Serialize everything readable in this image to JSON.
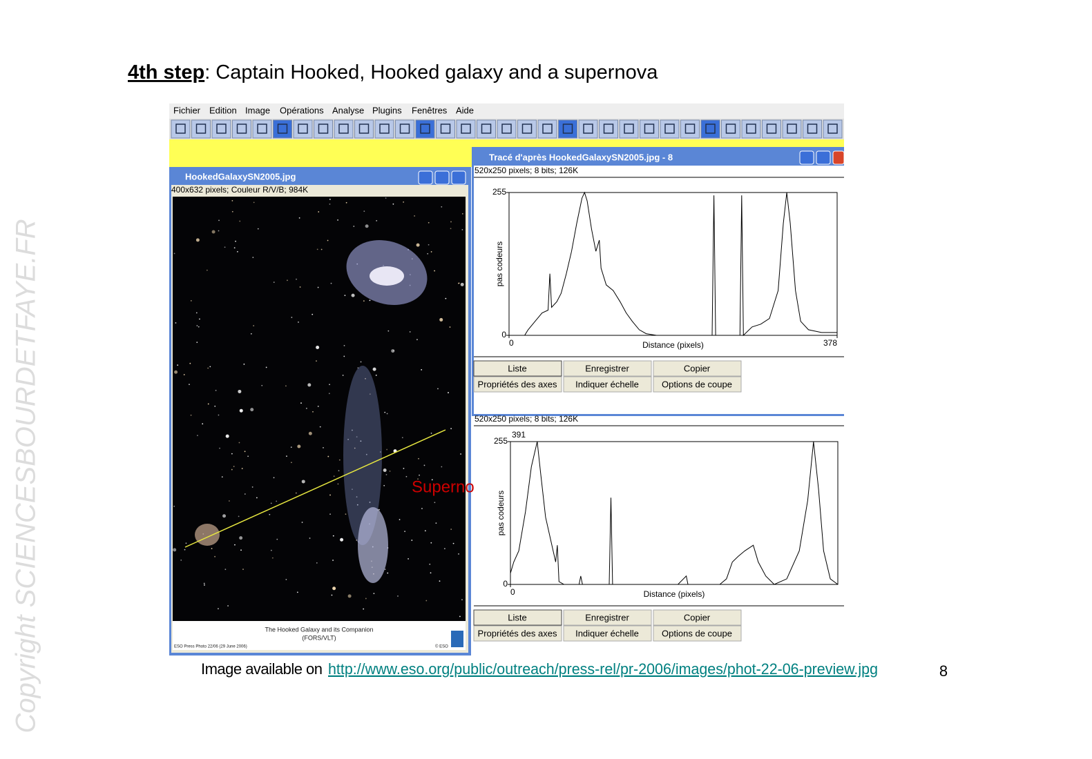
{
  "slide": {
    "title_bold": "4th step",
    "title_rest": ": Captain Hooked, Hooked galaxy and a supernova",
    "footer_text": "Image available on",
    "footer_link": "http://www.eso.org/public/outreach/press-rel/pr-2006/images/phot-22-06-preview.jpg",
    "page_number": "8",
    "copyright": "Copyright SCIENCESBOURDETFAYE.FR"
  },
  "menu": [
    "Fichier",
    "Edition",
    "Image",
    "Opérations",
    "Analyse",
    "Plugins",
    "Fenêtres",
    "Aide"
  ],
  "image_window": {
    "title": "HookedGalaxySN2005.jpg",
    "info": "400x632 pixels; Couleur R/V/B; 984K",
    "caption": "The Hooked Galaxy and its Companion",
    "caption2": "(FORS/VLT)",
    "credit": "ESO Press Photo 22/06 (29 June 2006)",
    "credit_right": "© ESO",
    "annotation": "Supernova"
  },
  "plot_windows": [
    {
      "title": "Tracé d'après HookedGalaxySN2005.jpg - 8",
      "info": "520x250 pixels; 8 bits; 126K",
      "buttons": [
        "Liste",
        "Enregistrer",
        "Copier",
        "Propriétés des axes",
        "Indiquer échelle",
        "Options de coupe"
      ],
      "chart_data": {
        "type": "line",
        "xlabel": "Distance (pixels)",
        "ylabel": "pas codeurs",
        "xlim": [
          0,
          378
        ],
        "ylim": [
          0,
          255
        ],
        "xticks": [
          0,
          378
        ],
        "yticks": [
          0,
          255
        ],
        "color": "#000000",
        "x": [
          0,
          18,
          22,
          30,
          38,
          45,
          47,
          49,
          55,
          60,
          66,
          72,
          78,
          84,
          87,
          90,
          95,
          100,
          104,
          106,
          112,
          120,
          128,
          135,
          142,
          150,
          158,
          170,
          200,
          234,
          236,
          238,
          266,
          268,
          270,
          280,
          290,
          300,
          310,
          316,
          320,
          324,
          330,
          336,
          345,
          360,
          378
        ],
        "values": [
          0,
          0,
          10,
          25,
          40,
          45,
          110,
          50,
          60,
          75,
          110,
          150,
          200,
          245,
          255,
          240,
          190,
          150,
          170,
          120,
          90,
          80,
          60,
          40,
          25,
          10,
          3,
          0,
          0,
          0,
          250,
          0,
          0,
          250,
          0,
          15,
          20,
          30,
          80,
          200,
          255,
          200,
          80,
          25,
          10,
          5,
          5
        ]
      }
    },
    {
      "info": "520x250 pixels; 8 bits; 126K",
      "buttons": [
        "Liste",
        "Enregistrer",
        "Copier",
        "Propriétés des axes",
        "Indiquer échelle",
        "Options de coupe"
      ],
      "chart_data": {
        "type": "line",
        "xlabel": "Distance (pixels)",
        "ylabel": "pas codeurs",
        "annotation": "391",
        "xlim": [
          0,
          391
        ],
        "ylim": [
          0,
          255
        ],
        "xticks": [
          0
        ],
        "yticks": [
          0,
          255
        ],
        "color": "#000000",
        "x": [
          0,
          4,
          10,
          18,
          25,
          32,
          36,
          42,
          48,
          54,
          56,
          58,
          64,
          82,
          84,
          86,
          118,
          120,
          122,
          200,
          210,
          212,
          250,
          258,
          265,
          272,
          280,
          290,
          296,
          305,
          315,
          330,
          345,
          355,
          362,
          368,
          374,
          382,
          391
        ],
        "values": [
          20,
          40,
          60,
          130,
          210,
          255,
          200,
          120,
          80,
          40,
          70,
          5,
          0,
          0,
          15,
          0,
          0,
          155,
          0,
          0,
          15,
          0,
          0,
          10,
          40,
          50,
          60,
          70,
          40,
          15,
          0,
          10,
          60,
          150,
          255,
          170,
          60,
          10,
          0
        ]
      }
    }
  ]
}
